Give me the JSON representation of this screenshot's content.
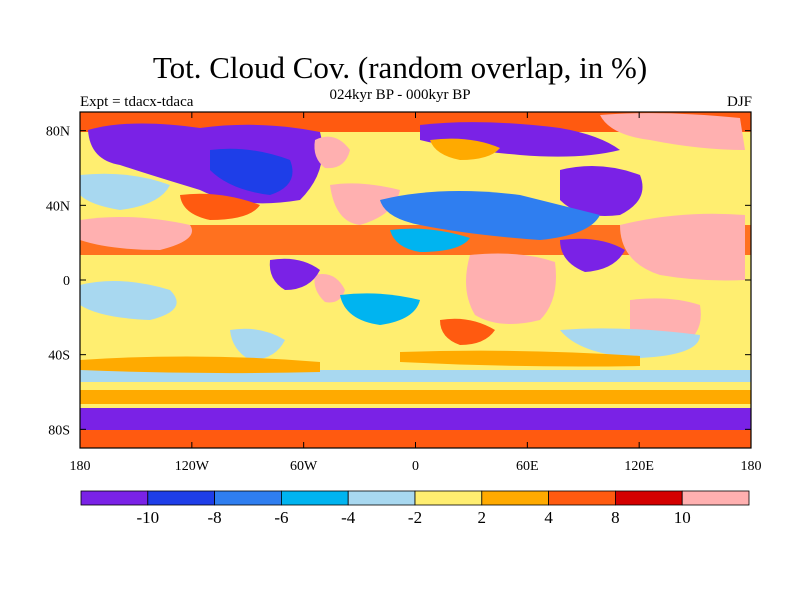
{
  "title": "Tot. Cloud Cov. (random overlap, in %)",
  "subtitle": "024kyr BP - 000kyr BP",
  "experiment_label": "Expt = tdacx-tdaca",
  "season": "DJF",
  "map": {
    "lon_range": [
      -180,
      180
    ],
    "lat_range": [
      -90,
      90
    ],
    "x_ticks": [
      {
        "lon": -180,
        "label": "180"
      },
      {
        "lon": -120,
        "label": "120W"
      },
      {
        "lon": -60,
        "label": "60W"
      },
      {
        "lon": 0,
        "label": "0"
      },
      {
        "lon": 60,
        "label": "60E"
      },
      {
        "lon": 120,
        "label": "120E"
      },
      {
        "lon": 180,
        "label": "180"
      }
    ],
    "y_ticks": [
      {
        "lat": 80,
        "label": "80N"
      },
      {
        "lat": 40,
        "label": "40N"
      },
      {
        "lat": 0,
        "label": "0"
      },
      {
        "lat": -40,
        "label": "40S"
      },
      {
        "lat": -80,
        "label": "80S"
      }
    ]
  },
  "colorbar": {
    "colors": [
      "#7a22e6",
      "#1e3ee8",
      "#2f7ef0",
      "#00b4f0",
      "#a8d8f0",
      "#ffee70",
      "#ffaa00",
      "#ff5a10",
      "#d40000",
      "#ffb0b0"
    ],
    "levels": [
      "-10",
      "-8",
      "-6",
      "-4",
      "-2",
      "2",
      "4",
      "8",
      "10"
    ]
  }
}
